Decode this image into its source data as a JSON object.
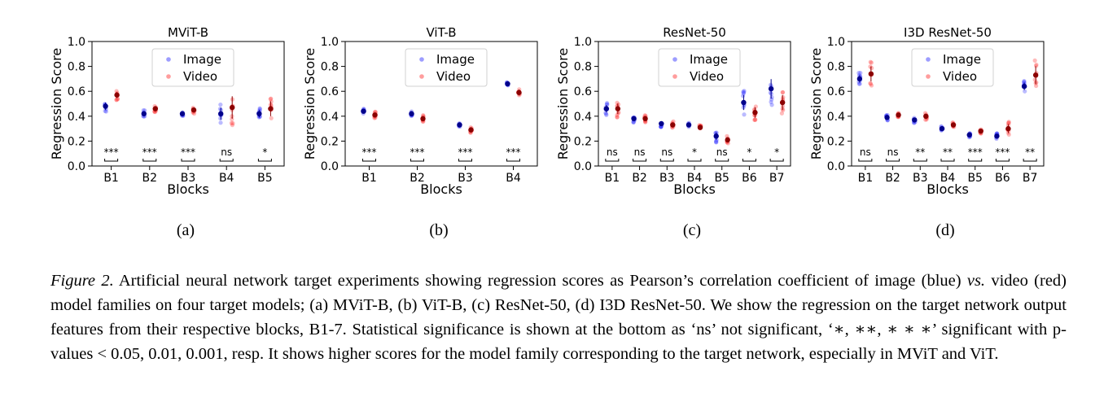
{
  "figure": {
    "caption_lead": "Figure 2.",
    "caption_p1": " Artificial neural network target experiments showing regression scores as Pearson’s correlation coefficient of image (blue) ",
    "caption_vs": "vs.",
    "caption_p2": " video (red) model families on four target models; (a) MViT-B, (b) ViT-B, (c) ResNet-50, (d) I3D ResNet-50. We show the regression on the target network output features from their respective blocks, B1-7. Statistical significance is shown at the bottom as ‘ns’ not significant, ‘∗, ∗∗, ∗ ∗ ∗’ significant with p-values < 0.05, 0.01, 0.001, resp. It shows higher scores for the model family corresponding to the target network, especially in MViT and ViT."
  },
  "colors": {
    "image": "#3b3bff",
    "video": "#ff3b3b",
    "image_mean": "#00008b",
    "video_mean": "#8b0000"
  },
  "chart_data": [
    {
      "type": "scatter",
      "panel": "(a)",
      "title": "MViT-B",
      "xlabel": "Blocks",
      "ylabel": "Regression Score",
      "ylim": [
        0,
        1
      ],
      "yticks": [
        "0.0",
        "0.2",
        "0.4",
        "0.6",
        "0.8",
        "1.0"
      ],
      "legend": [
        "Image",
        "Video"
      ],
      "legend_position": "top-center",
      "categories": [
        "B1",
        "B2",
        "B3",
        "B4",
        "B5"
      ],
      "significance": [
        "***",
        "***",
        "***",
        "ns",
        "*"
      ],
      "series": [
        {
          "name": "Image",
          "mean": [
            0.48,
            0.42,
            0.42,
            0.42,
            0.42
          ],
          "spread": [
            0.05,
            0.03,
            0.02,
            0.08,
            0.05
          ]
        },
        {
          "name": "Video",
          "mean": [
            0.57,
            0.46,
            0.45,
            0.47,
            0.46
          ],
          "spread": [
            0.04,
            0.03,
            0.03,
            0.15,
            0.1
          ]
        }
      ]
    },
    {
      "type": "scatter",
      "panel": "(b)",
      "title": "ViT-B",
      "xlabel": "Blocks",
      "ylabel": "Regression Score",
      "ylim": [
        0,
        1
      ],
      "yticks": [
        "0.0",
        "0.2",
        "0.4",
        "0.6",
        "0.8",
        "1.0"
      ],
      "legend": [
        "Image",
        "Video"
      ],
      "legend_position": "top-center",
      "categories": [
        "B1",
        "B2",
        "B3",
        "B4"
      ],
      "significance": [
        "***",
        "***",
        "***",
        "***"
      ],
      "series": [
        {
          "name": "Image",
          "mean": [
            0.44,
            0.42,
            0.33,
            0.66
          ],
          "spread": [
            0.02,
            0.02,
            0.015,
            0.015
          ]
        },
        {
          "name": "Video",
          "mean": [
            0.41,
            0.38,
            0.29,
            0.59
          ],
          "spread": [
            0.03,
            0.03,
            0.025,
            0.04
          ]
        }
      ]
    },
    {
      "type": "scatter",
      "panel": "(c)",
      "title": "ResNet-50",
      "xlabel": "Blocks",
      "ylabel": "Regression Score",
      "ylim": [
        0,
        1
      ],
      "yticks": [
        "0.0",
        "0.2",
        "0.4",
        "0.6",
        "0.8",
        "1.0"
      ],
      "legend": [
        "Image",
        "Video"
      ],
      "legend_position": "top-center",
      "categories": [
        "B1",
        "B2",
        "B3",
        "B4",
        "B5",
        "B6",
        "B7"
      ],
      "significance": [
        "ns",
        "ns",
        "ns",
        "*",
        "ns",
        "*",
        "*"
      ],
      "series": [
        {
          "name": "Image",
          "mean": [
            0.46,
            0.38,
            0.34,
            0.33,
            0.24,
            0.51,
            0.62
          ],
          "spread": [
            0.05,
            0.03,
            0.03,
            0.02,
            0.05,
            0.1,
            0.13
          ]
        },
        {
          "name": "Video",
          "mean": [
            0.46,
            0.38,
            0.33,
            0.31,
            0.21,
            0.43,
            0.51
          ],
          "spread": [
            0.07,
            0.03,
            0.03,
            0.02,
            0.03,
            0.07,
            0.1
          ]
        }
      ]
    },
    {
      "type": "scatter",
      "panel": "(d)",
      "title": "I3D ResNet-50",
      "xlabel": "Blocks",
      "ylabel": "Regression Score",
      "ylim": [
        0,
        1
      ],
      "yticks": [
        "0.0",
        "0.2",
        "0.4",
        "0.6",
        "0.8",
        "1.0"
      ],
      "legend": [
        "Image",
        "Video"
      ],
      "legend_position": "top-center",
      "categories": [
        "B1",
        "B2",
        "B3",
        "B4",
        "B5",
        "B6",
        "B7"
      ],
      "significance": [
        "ns",
        "ns",
        "**",
        "**",
        "***",
        "***",
        "**"
      ],
      "series": [
        {
          "name": "Image",
          "mean": [
            0.7,
            0.39,
            0.37,
            0.3,
            0.25,
            0.24,
            0.64
          ],
          "spread": [
            0.05,
            0.03,
            0.03,
            0.02,
            0.02,
            0.03,
            0.05
          ]
        },
        {
          "name": "Video",
          "mean": [
            0.74,
            0.41,
            0.4,
            0.33,
            0.28,
            0.3,
            0.73
          ],
          "spread": [
            0.1,
            0.03,
            0.03,
            0.02,
            0.02,
            0.06,
            0.12
          ]
        }
      ]
    }
  ]
}
